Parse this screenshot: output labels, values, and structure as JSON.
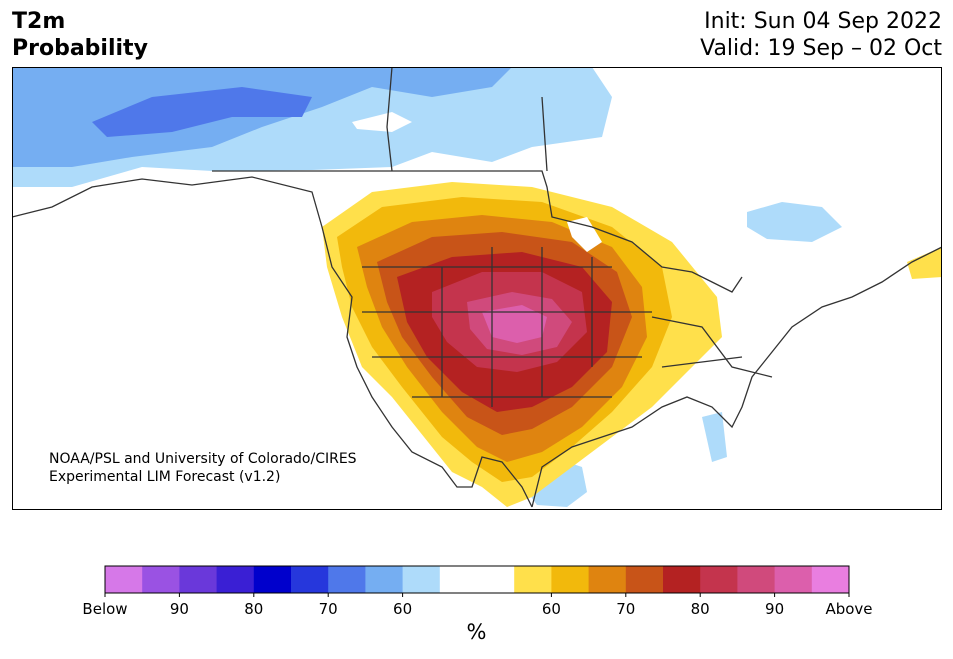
{
  "title": {
    "line1": "T2m",
    "line2": "Probability"
  },
  "init": {
    "line1": "Init: Sun 04 Sep 2022",
    "line2": "Valid: 19 Sep – 02 Oct"
  },
  "credit": {
    "line1": "NOAA/PSL and University of Colorado/CIRES",
    "line2": "Experimental LIM Forecast (v1.2)"
  },
  "colorbar": {
    "unit": "%",
    "colors": [
      "#d678e8",
      "#9a52e3",
      "#6a38da",
      "#3a1fd4",
      "#0000cc",
      "#2637dc",
      "#4f78ea",
      "#75aef2",
      "#aedbfa",
      "#ffffff",
      "#ffffff",
      "#ffe04b",
      "#f2b90c",
      "#df8410",
      "#c85418",
      "#b42222",
      "#c4344d",
      "#d04a7c",
      "#dc5fac",
      "#e97ee0"
    ],
    "labels": [
      "Below",
      "90",
      "80",
      "70",
      "60",
      "60",
      "70",
      "80",
      "90",
      "Above"
    ]
  }
}
